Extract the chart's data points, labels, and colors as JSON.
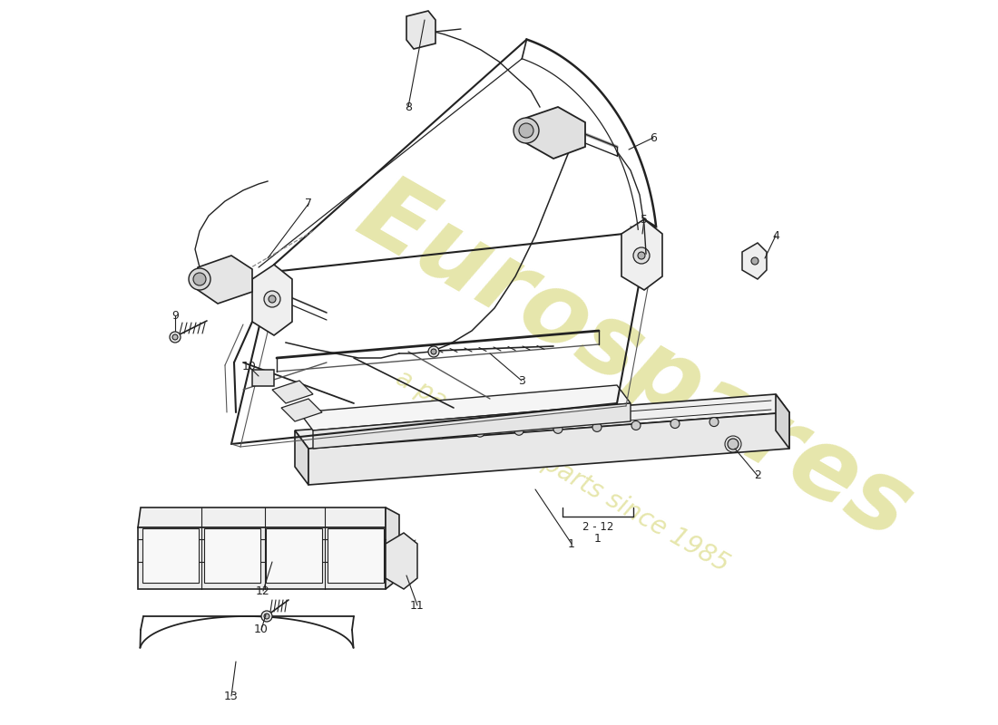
{
  "background_color": "#ffffff",
  "line_color": "#222222",
  "watermark_main": "Eurospares",
  "watermark_sub": "a passion for parts since 1985",
  "watermark_color": "#dede90",
  "figsize": [
    11.0,
    8.0
  ],
  "dpi": 100
}
